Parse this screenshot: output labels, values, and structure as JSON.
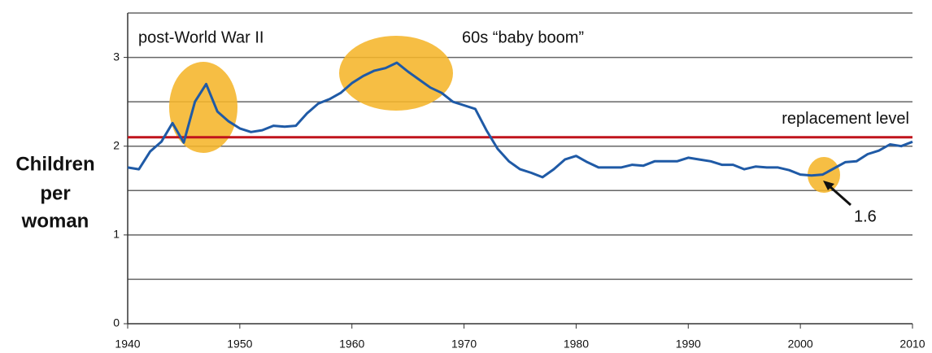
{
  "chart_data": {
    "type": "line",
    "ylabel": [
      "Children",
      "per",
      "woman"
    ],
    "annotations": [
      "post-World War II",
      "60s “baby boom”",
      "1.6"
    ],
    "reference_line": {
      "value": 2.1,
      "label": "replacement level",
      "color": "#c0141c"
    },
    "x": [
      1940,
      1941,
      1942,
      1943,
      1944,
      1945,
      1946,
      1947,
      1948,
      1949,
      1950,
      1951,
      1952,
      1953,
      1954,
      1955,
      1956,
      1957,
      1958,
      1959,
      1960,
      1961,
      1962,
      1963,
      1964,
      1965,
      1966,
      1967,
      1968,
      1969,
      1970,
      1971,
      1972,
      1973,
      1974,
      1975,
      1976,
      1977,
      1978,
      1979,
      1980,
      1981,
      1982,
      1983,
      1984,
      1985,
      1986,
      1987,
      1988,
      1989,
      1990,
      1991,
      1992,
      1993,
      1994,
      1995,
      1996,
      1997,
      1998,
      1999,
      2000,
      2001,
      2002,
      2003,
      2004,
      2005,
      2006,
      2007,
      2008,
      2009,
      2010
    ],
    "series": [
      {
        "color": "#1f5aa6",
        "values": [
          1.76,
          1.74,
          1.94,
          2.05,
          2.26,
          2.04,
          2.5,
          2.7,
          2.39,
          2.28,
          2.2,
          2.16,
          2.18,
          2.23,
          2.22,
          2.23,
          2.37,
          2.48,
          2.53,
          2.6,
          2.71,
          2.79,
          2.85,
          2.88,
          2.94,
          2.84,
          2.75,
          2.66,
          2.6,
          2.5,
          2.46,
          2.42,
          2.18,
          1.97,
          1.83,
          1.74,
          1.7,
          1.65,
          1.74,
          1.85,
          1.89,
          1.82,
          1.76,
          1.76,
          1.76,
          1.79,
          1.78,
          1.83,
          1.83,
          1.83,
          1.87,
          1.85,
          1.83,
          1.79,
          1.79,
          1.74,
          1.77,
          1.76,
          1.76,
          1.73,
          1.68,
          1.67,
          1.68,
          1.75,
          1.82,
          1.83,
          1.91,
          1.95,
          2.02,
          2.0,
          2.05
        ]
      }
    ],
    "xlim": [
      1940,
      2010
    ],
    "xticks": [
      1940,
      1950,
      1960,
      1970,
      1980,
      1990,
      2000,
      2010
    ],
    "ylim": [
      0,
      3.5
    ],
    "yticks": [
      0,
      1,
      2,
      3
    ],
    "minor_yticks": [
      0.5,
      1.5,
      2.5,
      3.5
    ],
    "grid": true
  }
}
